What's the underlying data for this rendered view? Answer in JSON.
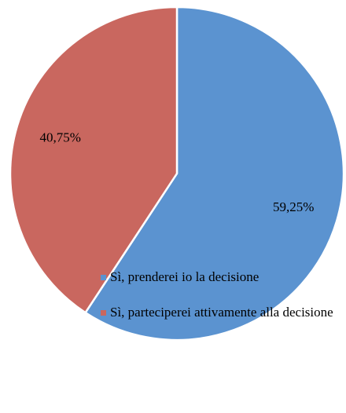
{
  "chart_data": {
    "type": "pie",
    "categories": [
      "Sì, prenderei io la decisione",
      "Sì, parteciperei attivamente alla decisione"
    ],
    "values": [
      59.25,
      40.75
    ],
    "value_labels": [
      "59,25%",
      "40,75%"
    ],
    "colors": [
      "#5b93d0",
      "#c9675f"
    ],
    "legend": "bottom"
  }
}
